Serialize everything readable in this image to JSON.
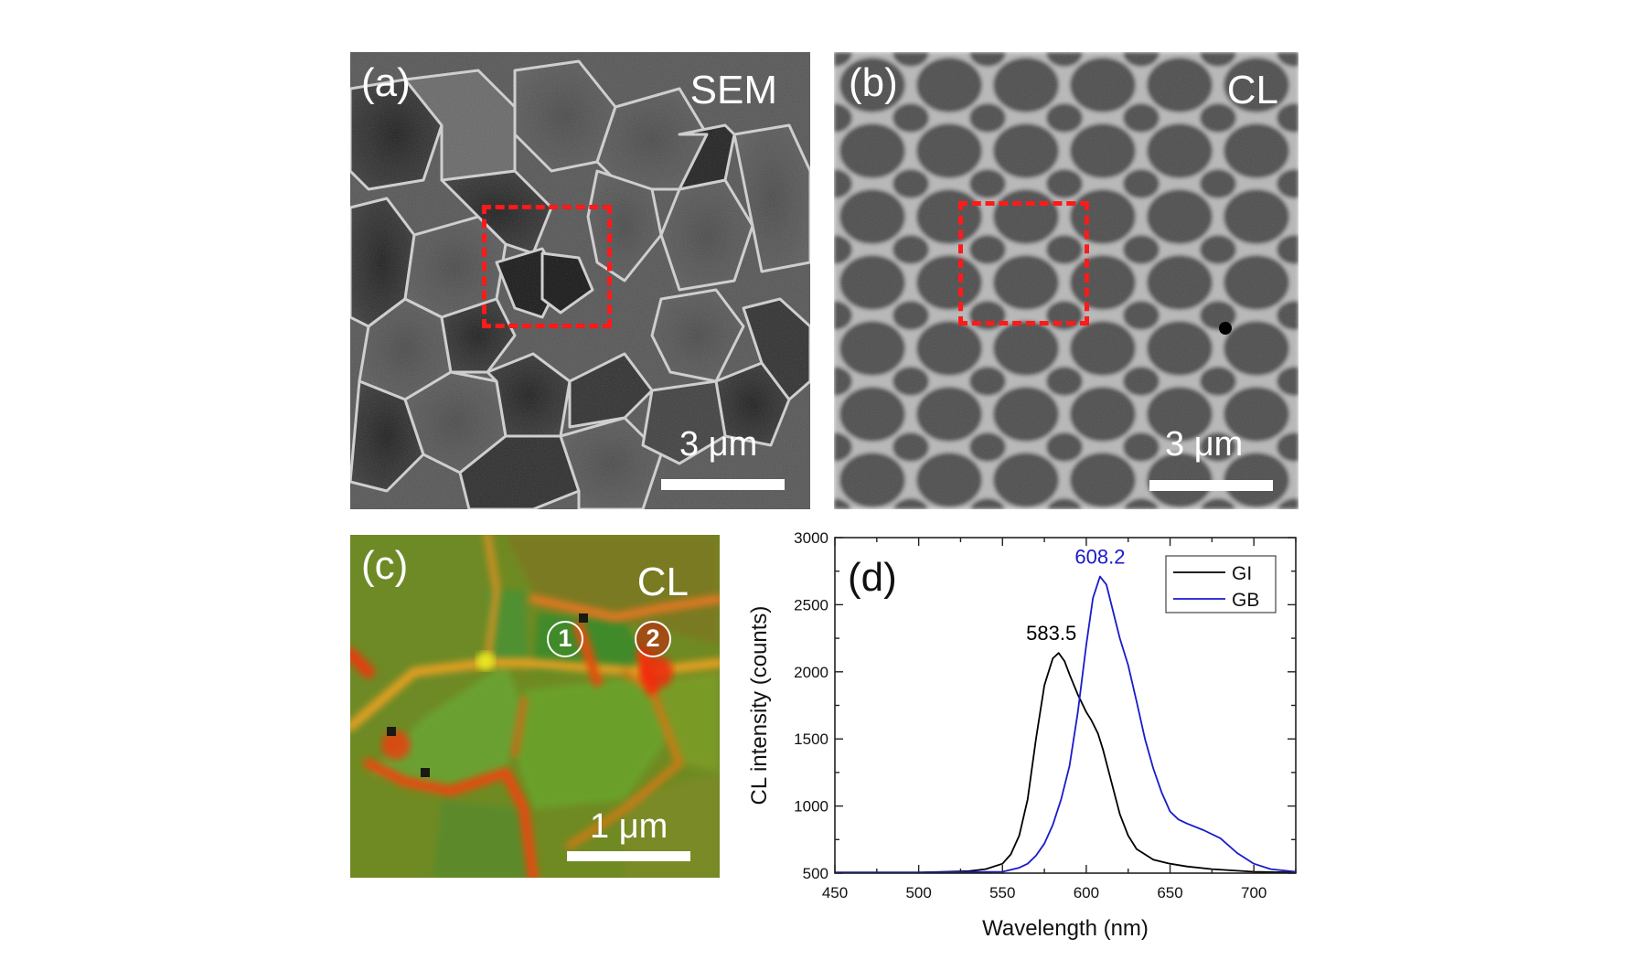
{
  "figure": {
    "panels": [
      {
        "id": "a",
        "label": "(a)",
        "mode": "SEM",
        "scale_bar": "3 μm",
        "roi": "red dashed rectangle"
      },
      {
        "id": "b",
        "label": "(b)",
        "mode": "CL",
        "scale_bar": "3 μm",
        "roi": "red dashed rectangle"
      },
      {
        "id": "c",
        "label": "(c)",
        "mode": "CL",
        "scale_bar": "1 μm",
        "markers": [
          "①",
          "②"
        ],
        "marker_texts": [
          "1",
          "2"
        ]
      },
      {
        "id": "d",
        "label": "(d)"
      }
    ]
  },
  "colors": {
    "roi": "#ff1a1a",
    "gi_line": "#000000",
    "gb_line": "#1a1acc",
    "cl_green": "#6f9a2a",
    "cl_red": "#e8400f"
  },
  "chart_data": {
    "type": "line",
    "title": "",
    "panel_label": "(d)",
    "xlabel": "Wavelength (nm)",
    "ylabel": "CL intensity (counts)",
    "xlim": [
      450,
      725
    ],
    "ylim": [
      500,
      3000
    ],
    "xticks": [
      450,
      500,
      550,
      600,
      650,
      700
    ],
    "yticks": [
      500,
      1000,
      1500,
      2000,
      2500,
      3000
    ],
    "grid": false,
    "legend": {
      "position": "upper right",
      "entries": [
        "GI",
        "GB"
      ]
    },
    "annotations": [
      {
        "text": "583.5",
        "x": 583.5,
        "y": 2140,
        "color": "#000000"
      },
      {
        "text": "608.2",
        "x": 608.2,
        "y": 2710,
        "color": "#1a1acc"
      }
    ],
    "series": [
      {
        "name": "GI",
        "color": "#000000",
        "x": [
          450,
          500,
          530,
          540,
          550,
          555,
          560,
          565,
          570,
          575,
          580,
          583.5,
          587,
          590,
          595,
          600,
          603,
          607,
          610,
          615,
          620,
          625,
          630,
          640,
          650,
          660,
          675,
          700,
          725
        ],
        "y": [
          505,
          505,
          515,
          530,
          570,
          640,
          780,
          1050,
          1500,
          1900,
          2100,
          2140,
          2080,
          1980,
          1830,
          1700,
          1640,
          1540,
          1420,
          1180,
          940,
          780,
          680,
          600,
          570,
          550,
          530,
          510,
          505
        ]
      },
      {
        "name": "GB",
        "color": "#1a1acc",
        "x": [
          450,
          500,
          550,
          560,
          565,
          570,
          575,
          580,
          585,
          590,
          595,
          600,
          604,
          608.2,
          612,
          615,
          620,
          625,
          630,
          635,
          640,
          645,
          650,
          655,
          660,
          670,
          680,
          690,
          700,
          710,
          725
        ],
        "y": [
          505,
          505,
          510,
          540,
          570,
          630,
          720,
          860,
          1050,
          1300,
          1700,
          2200,
          2550,
          2710,
          2650,
          2500,
          2250,
          2050,
          1780,
          1500,
          1280,
          1100,
          960,
          900,
          870,
          820,
          760,
          650,
          570,
          530,
          510
        ]
      }
    ]
  }
}
